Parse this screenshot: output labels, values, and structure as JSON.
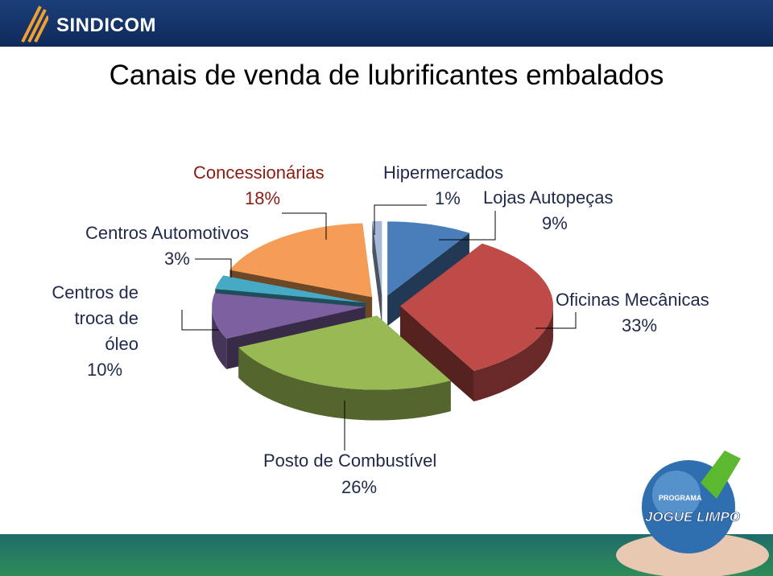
{
  "header": {
    "brand": "SINDICOM"
  },
  "chart_data": {
    "type": "pie3d",
    "title": "Canais de venda de lubrificantes embalados",
    "categories": [
      "Lojas Autopeças",
      "Oficinas Mecânicas",
      "Posto de Combustível",
      "Centros de troca de óleo",
      "Centros Automotivos",
      "Concessionárias",
      "Hipermercados"
    ],
    "values": [
      9,
      33,
      26,
      10,
      3,
      18,
      1
    ],
    "value_labels": [
      "9%",
      "33%",
      "26%",
      "10%",
      "3%",
      "18%",
      "1%"
    ],
    "colors": [
      "#4a7ebb",
      "#be4b48",
      "#98b954",
      "#7d60a0",
      "#46aac5",
      "#f59d56",
      "#a5b8d7"
    ]
  },
  "logo": {
    "top": "PROGRAMA",
    "main": "JOGUE LIMPO"
  }
}
